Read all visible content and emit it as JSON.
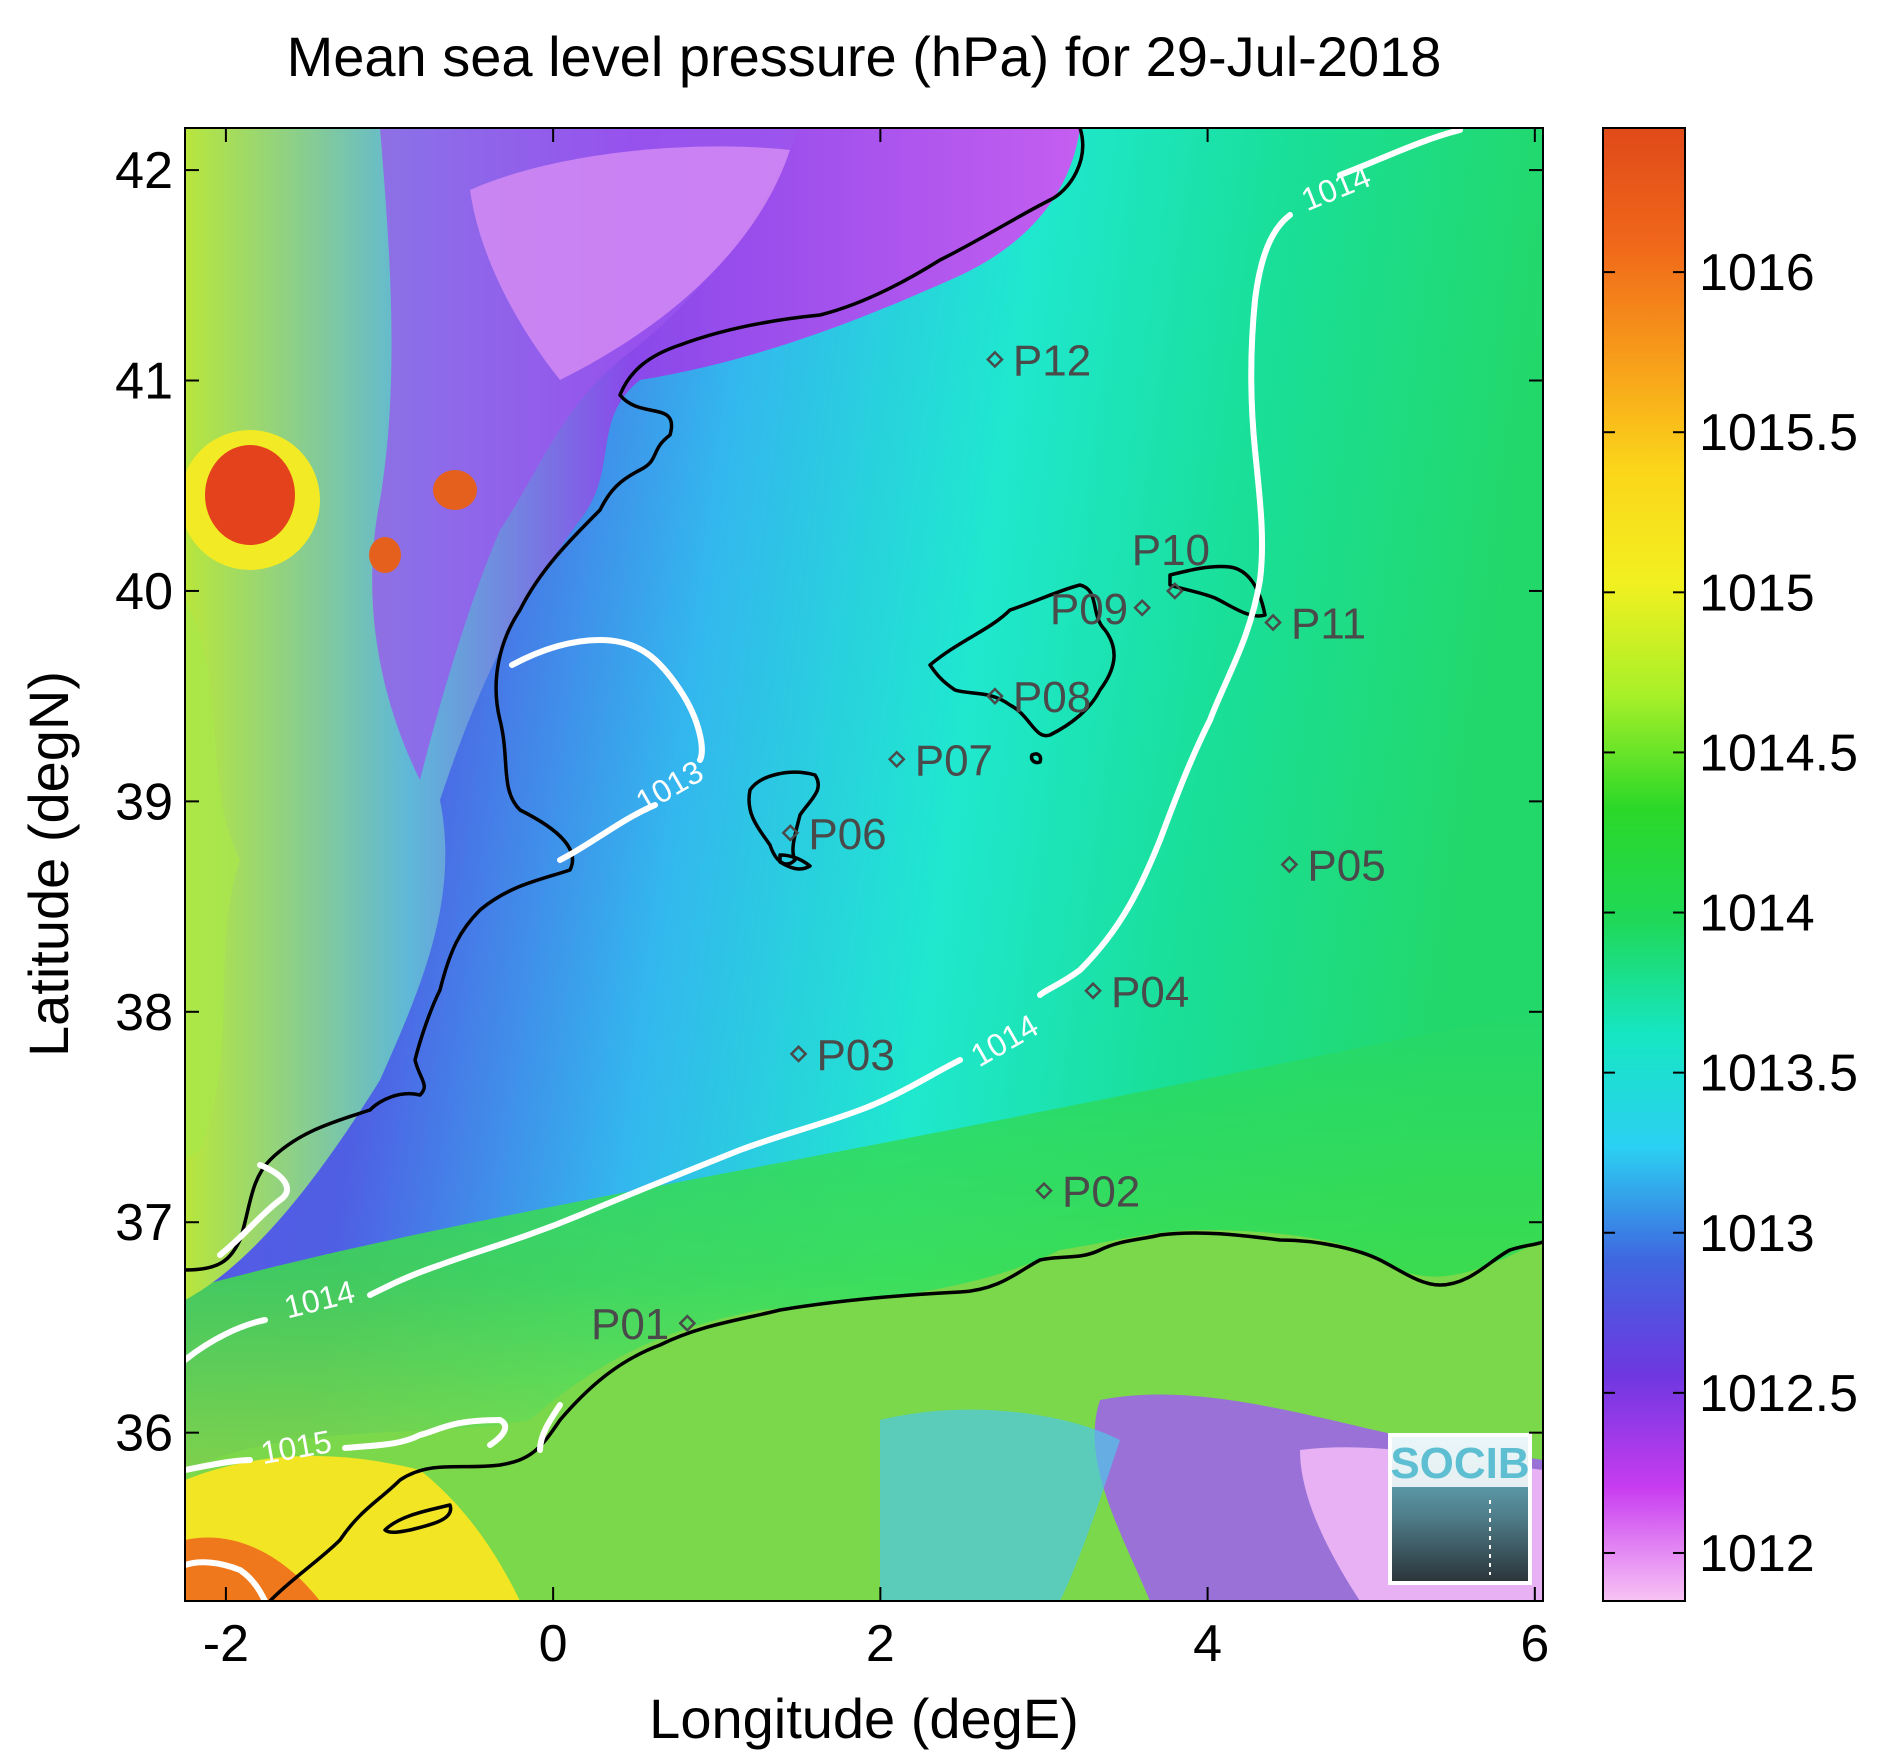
{
  "title": "Mean sea level pressure (hPa) for 29-Jul-2018",
  "xlabel": "Longitude (degE)",
  "ylabel": "Latitude (degN)",
  "x_ticks": [
    "-2",
    "0",
    "2",
    "4",
    "6"
  ],
  "y_ticks": [
    "36",
    "37",
    "38",
    "39",
    "40",
    "41",
    "42"
  ],
  "colorbar_ticks": [
    "1012",
    "1012.5",
    "1013",
    "1013.5",
    "1014",
    "1014.5",
    "1015",
    "1015.5",
    "1016"
  ],
  "logo_text": "SOCIB",
  "chart_data": {
    "type": "heatmap",
    "title": "Mean sea level pressure (hPa) for 29-Jul-2018",
    "xlabel": "Longitude (degE)",
    "ylabel": "Latitude (degN)",
    "xlim": [
      -2.25,
      6.05
    ],
    "ylim": [
      35.2,
      42.2
    ],
    "clim": [
      1011.85,
      1016.45
    ],
    "colormap": [
      "#f8c4f5",
      "#c83cf0",
      "#6e37e0",
      "#3f66e0",
      "#2bd0f2",
      "#16e6c2",
      "#1fd858",
      "#2bd828",
      "#a8f028",
      "#f2f020",
      "#fbd51a",
      "#f79b1a",
      "#f0661a",
      "#e04a1a"
    ],
    "contours": [
      {
        "level": "1013",
        "label": "1013"
      },
      {
        "level": "1014",
        "label": "1014"
      },
      {
        "level": "1015",
        "label": "1015"
      }
    ],
    "stations": [
      {
        "name": "P01",
        "lon": 0.82,
        "lat": 36.52
      },
      {
        "name": "P02",
        "lon": 3.0,
        "lat": 37.15
      },
      {
        "name": "P03",
        "lon": 1.5,
        "lat": 37.8
      },
      {
        "name": "P04",
        "lon": 3.3,
        "lat": 38.1
      },
      {
        "name": "P05",
        "lon": 4.5,
        "lat": 38.7
      },
      {
        "name": "P06",
        "lon": 1.45,
        "lat": 38.85
      },
      {
        "name": "P07",
        "lon": 2.1,
        "lat": 39.2
      },
      {
        "name": "P08",
        "lon": 2.7,
        "lat": 39.5
      },
      {
        "name": "P09",
        "lon": 3.6,
        "lat": 39.92
      },
      {
        "name": "P10",
        "lon": 3.8,
        "lat": 40.0
      },
      {
        "name": "P11",
        "lon": 4.4,
        "lat": 39.85
      },
      {
        "name": "P12",
        "lon": 2.7,
        "lat": 41.1
      }
    ]
  }
}
